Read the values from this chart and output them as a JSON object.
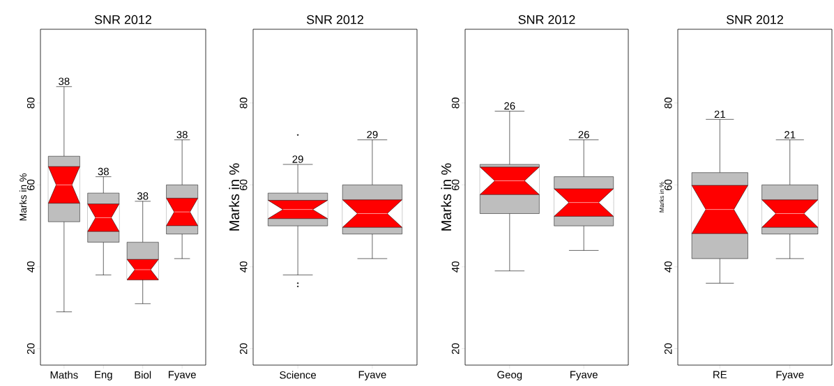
{
  "chart_data": [
    {
      "type": "box",
      "title": "SNR 2012",
      "ylabel": "Marks in %",
      "categories": [
        "Maths",
        "Eng",
        "Biol",
        "Fyave"
      ],
      "color": "#ff0000",
      "ylim": [
        16,
        98
      ],
      "yticks": [
        20,
        40,
        60,
        80
      ],
      "series": [
        {
          "color": "#bebebe",
          "boxes": [
            {
              "low": 29,
              "q1": 51,
              "median": 60,
              "q3": 67,
              "high": 84
            },
            {
              "low": 38,
              "q1": 46,
              "median": 52,
              "q3": 58,
              "high": 62
            },
            {
              "low": 31,
              "q1": 37,
              "median": 39.3,
              "q3": 46,
              "high": 56
            },
            {
              "low": 42,
              "q1": 48,
              "median": 53.4,
              "q3": 60,
              "high": 71
            }
          ]
        }
      ],
      "annotations": [
        {
          "text": "38",
          "x": "Maths",
          "y": 84
        },
        {
          "text": "38",
          "x": "Eng",
          "y": 62
        },
        {
          "text": "38",
          "x": "Biol",
          "y": 56
        },
        {
          "text": "38",
          "x": "Fyave",
          "y": 71
        }
      ]
    },
    {
      "type": "box",
      "title": "SNR 2012",
      "ylabel": "Marks in %",
      "categories": [
        "Science",
        "Fyave"
      ],
      "color": "#ff0000",
      "ylim": [
        16,
        98
      ],
      "yticks": [
        20,
        40,
        60,
        80
      ],
      "series": [
        {
          "color": "#bebebe",
          "boxes": [
            {
              "low": 38,
              "q1": 50,
              "median": 54,
              "q3": 58,
              "high": 65,
              "outliers": [
                72.2,
                36,
                35.2
              ]
            },
            {
              "low": 42,
              "q1": 48,
              "median": 53,
              "q3": 60,
              "high": 71
            }
          ]
        }
      ],
      "annotations": [
        {
          "text": "29",
          "x": "Science",
          "y": 65
        },
        {
          "text": "29",
          "x": "Fyave",
          "y": 71
        }
      ]
    },
    {
      "type": "box",
      "title": "SNR 2012",
      "ylabel": "Marks in %",
      "categories": [
        "Geog",
        "Fyave"
      ],
      "color": "#ff0000",
      "ylim": [
        16,
        98
      ],
      "yticks": [
        20,
        40,
        60,
        80
      ],
      "series": [
        {
          "color": "#bebebe",
          "boxes": [
            {
              "low": 39,
              "q1": 53,
              "median": 61,
              "q3": 65,
              "high": 78
            },
            {
              "low": 44,
              "q1": 50,
              "median": 55.7,
              "q3": 62,
              "high": 71
            }
          ]
        }
      ],
      "annotations": [
        {
          "text": "26",
          "x": "Geog",
          "y": 78
        },
        {
          "text": "26",
          "x": "Fyave",
          "y": 71
        }
      ]
    },
    {
      "type": "box",
      "title": "SNR 2012",
      "ylabel": "Marks in %",
      "categories": [
        "RE",
        "Fyave"
      ],
      "color": "#ff0000",
      "ylim": [
        16,
        98
      ],
      "yticks": [
        20,
        40,
        60,
        80
      ],
      "series": [
        {
          "color": "#bebebe",
          "boxes": [
            {
              "low": 36,
              "q1": 42,
              "median": 54,
              "q3": 63,
              "high": 76
            },
            {
              "low": 42,
              "q1": 48,
              "median": 53,
              "q3": 60,
              "high": 71
            }
          ]
        }
      ],
      "annotations": [
        {
          "text": "21",
          "x": "RE",
          "y": 76
        },
        {
          "text": "21",
          "x": "Fyave",
          "y": 71
        }
      ]
    }
  ]
}
